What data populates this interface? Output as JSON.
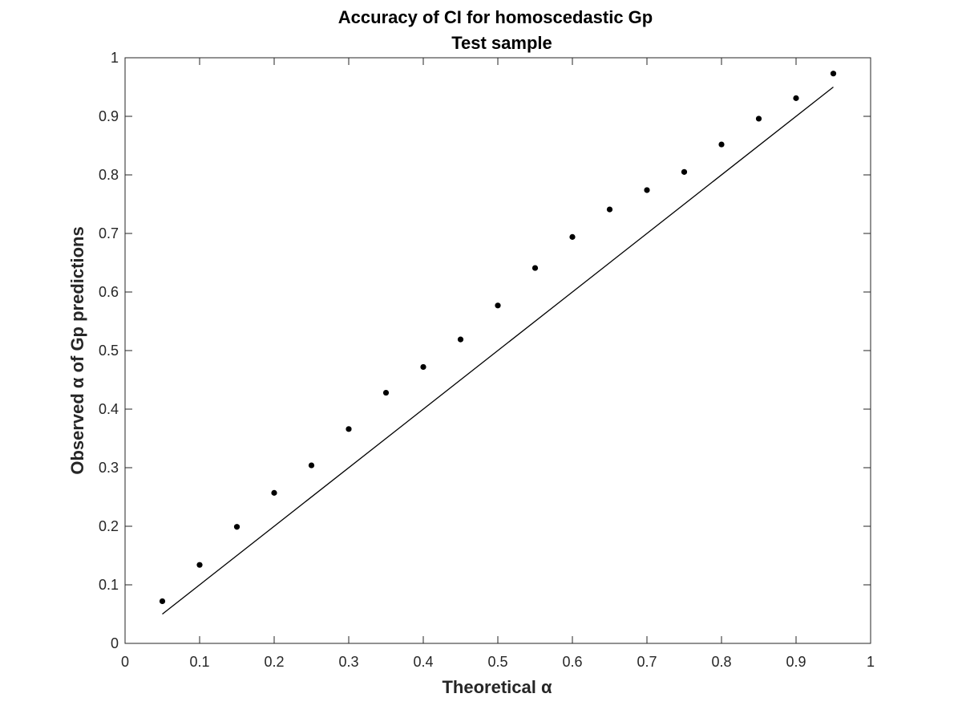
{
  "chart_data": {
    "type": "scatter",
    "title": "Accuracy of CI for homoscedastic Gp",
    "subtitle": "Test sample",
    "xlabel": "Theoretical α",
    "ylabel": "Observed α of Gp predictions",
    "xlim": [
      0,
      1
    ],
    "ylim": [
      0,
      1
    ],
    "xticks": [
      "0",
      "0.1",
      "0.2",
      "0.3",
      "0.4",
      "0.5",
      "0.6",
      "0.7",
      "0.8",
      "0.9",
      "1"
    ],
    "yticks": [
      "0",
      "0.1",
      "0.2",
      "0.3",
      "0.4",
      "0.5",
      "0.6",
      "0.7",
      "0.8",
      "0.9",
      "1"
    ],
    "grid": false,
    "series": [
      {
        "type": "scatter",
        "color": "#000000",
        "x": [
          0.05,
          0.1,
          0.15,
          0.2,
          0.25,
          0.3,
          0.35,
          0.4,
          0.45,
          0.5,
          0.55,
          0.6,
          0.65,
          0.7,
          0.75,
          0.8,
          0.85,
          0.9,
          0.95
        ],
        "y": [
          0.072,
          0.134,
          0.199,
          0.257,
          0.304,
          0.366,
          0.428,
          0.472,
          0.519,
          0.577,
          0.641,
          0.694,
          0.741,
          0.774,
          0.805,
          0.852,
          0.896,
          0.931,
          0.973
        ]
      },
      {
        "type": "line",
        "color": "#000000",
        "x": [
          0.05,
          0.95
        ],
        "y": [
          0.05,
          0.95
        ]
      }
    ]
  }
}
